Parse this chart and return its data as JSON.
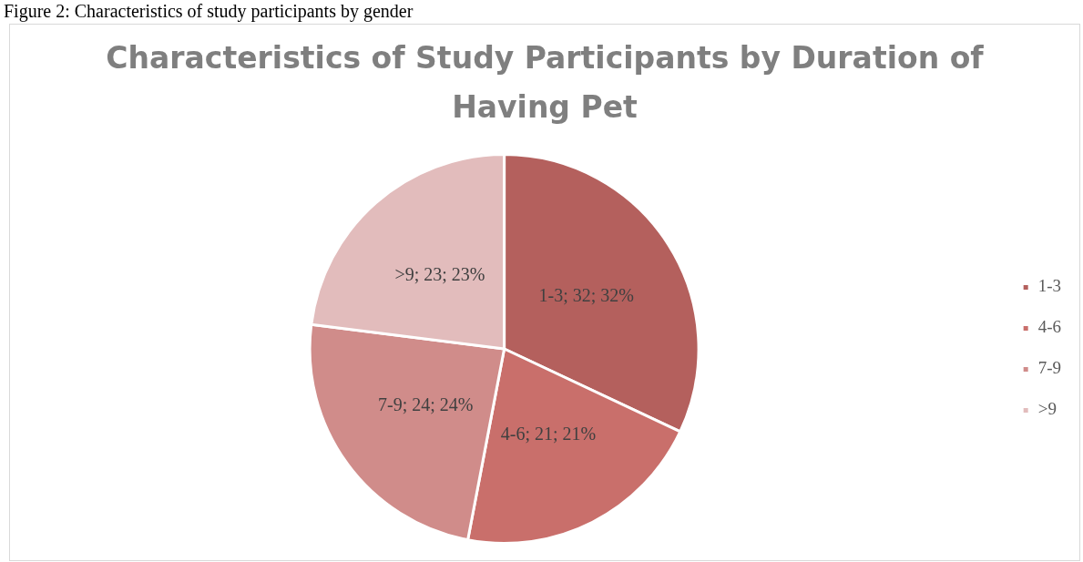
{
  "chart_data": {
    "type": "pie",
    "title": "Characteristics of Study Participants by Duration of Having Pet",
    "annotations": [
      "Figure 2: Characteristics of study participants by gender"
    ],
    "categories": [
      "1-3",
      "4-6",
      "7-9",
      ">9"
    ],
    "values": [
      32,
      21,
      24,
      23
    ],
    "colors": [
      "#b4605d",
      "#c96f6b",
      "#d08c8a",
      "#e2bcbc"
    ],
    "value_labels": [
      "1-3; 32; 32%",
      "4-6; 21; 21%",
      "7-9; 24; 24%",
      ">9; 23; 23%"
    ],
    "legend": "right"
  }
}
